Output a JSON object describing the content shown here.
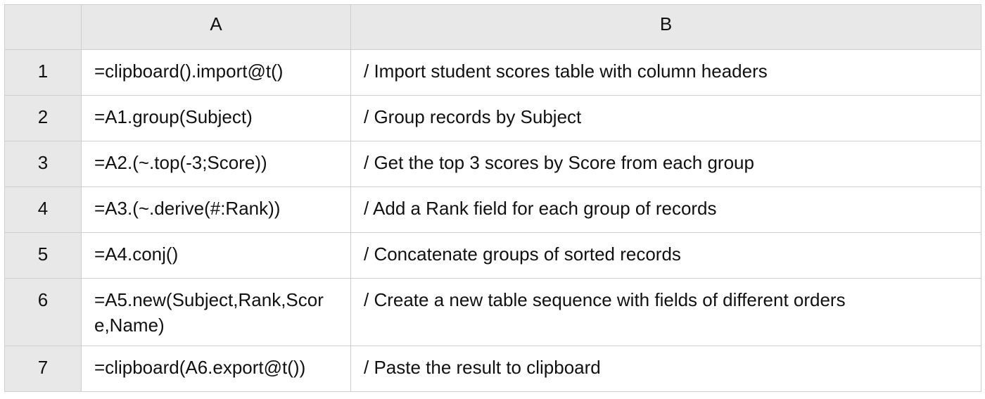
{
  "columns": {
    "corner": "",
    "a": "A",
    "b": "B"
  },
  "rows": [
    {
      "num": "1",
      "a": "=clipboard().import@t()",
      "b": "/ Import student scores table with column headers"
    },
    {
      "num": "2",
      "a": "=A1.group(Subject)",
      "b": "/ Group records by Subject"
    },
    {
      "num": "3",
      "a": "=A2.(~.top(-3;Score))",
      "b": "/ Get the top 3 scores by Score from each group"
    },
    {
      "num": "4",
      "a": "=A3.(~.derive(#:Rank))",
      "b": "/ Add a Rank field for each group of records"
    },
    {
      "num": "5",
      "a": "=A4.conj()",
      "b": "/ Concatenate groups of sorted records"
    },
    {
      "num": "6",
      "a": "=A5.new(Subject,Rank,Score,Name)",
      "b": "/ Create a new table sequence with fields of different orders"
    },
    {
      "num": "7",
      "a": "=clipboard(A6.export@t())",
      "b": "/ Paste the result to clipboard"
    }
  ],
  "colors": {
    "header_bg": "#e8e8e8",
    "grid_line": "#cfcfcf"
  }
}
